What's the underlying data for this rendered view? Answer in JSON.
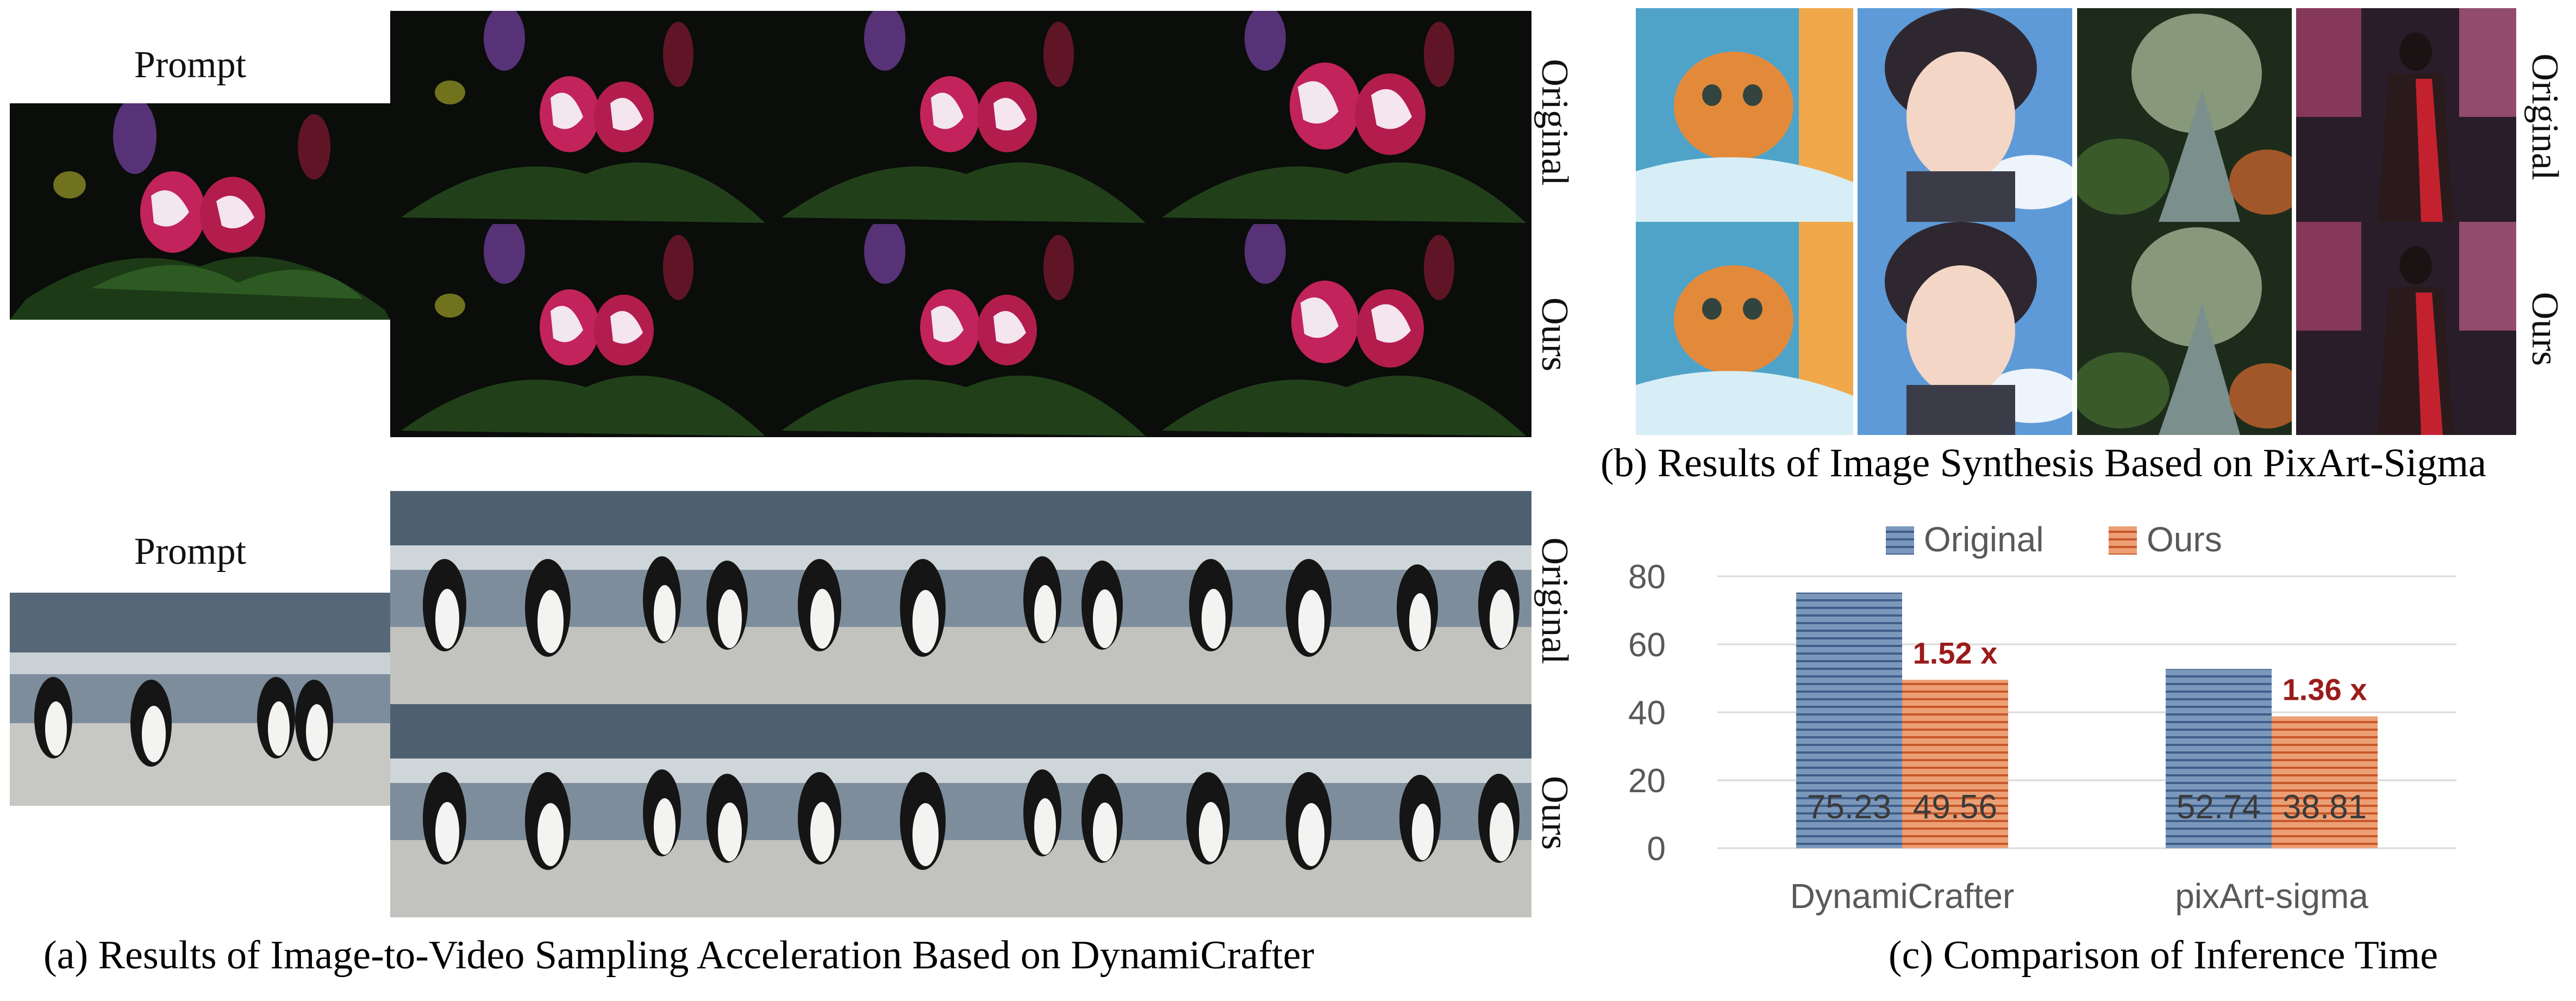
{
  "panel_a": {
    "prompt_label_top": "Prompt",
    "prompt_label_bottom": "Prompt",
    "row_label_original_top": "Original",
    "row_label_ours_top": "Ours",
    "row_label_original_bottom": "Original",
    "row_label_ours_bottom": "Ours",
    "caption": "(a) Results of Image-to-Video Sampling Acceleration Based on DynamiCrafter"
  },
  "panel_b": {
    "row_label_original": "Original",
    "row_label_ours": "Ours",
    "caption": "(b) Results of Image Synthesis Based on PixArt-Sigma"
  },
  "panel_c": {
    "caption": "(c) Comparison of Inference Time"
  },
  "chart_data": {
    "type": "bar",
    "categories": [
      "DynamiCrafter",
      "pixArt-sigma"
    ],
    "series": [
      {
        "name": "Original",
        "values": [
          75.23,
          52.74
        ],
        "color": "#6f8fb4"
      },
      {
        "name": "Ours",
        "values": [
          49.56,
          38.81
        ],
        "color": "#e28a5a"
      }
    ],
    "data_labels": [
      [
        "75.23",
        "52.74"
      ],
      [
        "49.56",
        "38.81"
      ]
    ],
    "speedup_labels": [
      "1.52 x",
      "1.36 x"
    ],
    "speedup_color": "#9b1b1b",
    "ylim": [
      0,
      80
    ],
    "yticks": [
      0,
      20,
      40,
      60,
      80
    ],
    "legend_position": "top",
    "grid": true
  }
}
